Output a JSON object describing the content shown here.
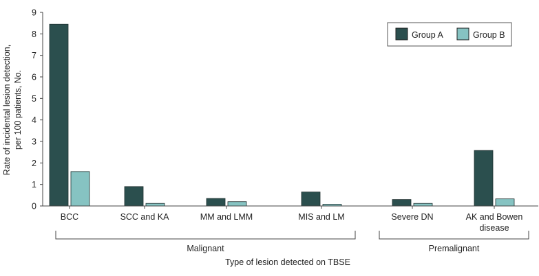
{
  "chart_data": {
    "type": "bar",
    "title": "",
    "xlabel": "Type of lesion detected on TBSE",
    "ylabel_lines": [
      "Rate of incidental lesion detection,",
      "per 100 patients, No."
    ],
    "ylim": [
      0,
      9
    ],
    "yticks": [
      0,
      1,
      2,
      3,
      4,
      5,
      6,
      7,
      8,
      9
    ],
    "categories": [
      {
        "lines": [
          "BCC"
        ]
      },
      {
        "lines": [
          "SCC and KA"
        ]
      },
      {
        "lines": [
          "MM and LMM"
        ]
      },
      {
        "lines": [
          "MIS and LM"
        ]
      },
      {
        "lines": [
          "Severe DN"
        ]
      },
      {
        "lines": [
          "AK and Bowen",
          "disease"
        ]
      }
    ],
    "series": [
      {
        "name": "Group A",
        "color": "#2b4f4e",
        "values": [
          8.45,
          0.9,
          0.35,
          0.65,
          0.3,
          2.58
        ]
      },
      {
        "name": "Group B",
        "color": "#86c3c2",
        "values": [
          1.6,
          0.12,
          0.2,
          0.08,
          0.12,
          0.33
        ]
      }
    ],
    "groups": [
      {
        "label": "Malignant",
        "start": 0,
        "end": 3
      },
      {
        "label": "Premalignant",
        "start": 4,
        "end": 5
      }
    ],
    "legend_position": "top-right"
  }
}
